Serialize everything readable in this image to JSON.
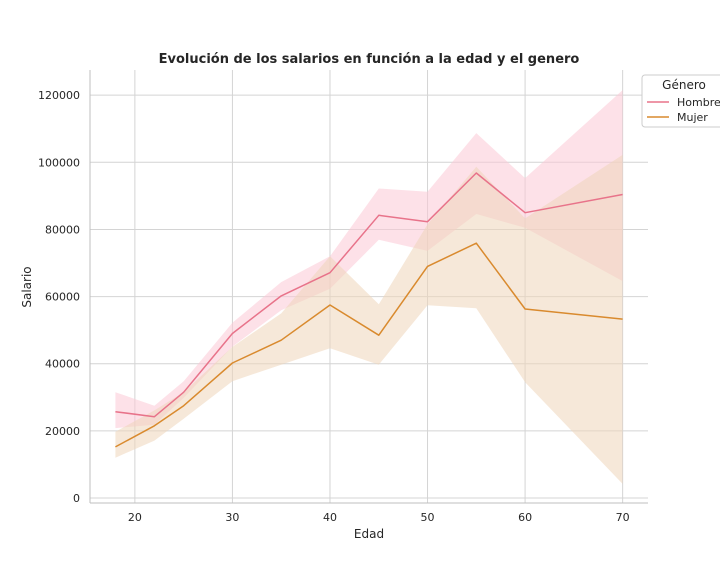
{
  "chart_data": {
    "type": "line",
    "title": "Evolución de los salarios en función a la edad y el genero",
    "xlabel": "Edad",
    "ylabel": "Salario",
    "xlim": [
      15.4,
      72.6
    ],
    "ylim": [
      -1500,
      127500
    ],
    "x_ticks": [
      20,
      30,
      40,
      50,
      60,
      70
    ],
    "y_ticks": [
      0,
      20000,
      40000,
      60000,
      80000,
      100000,
      120000
    ],
    "grid": true,
    "legend": {
      "title": "Género",
      "position": "top-right"
    },
    "series": [
      {
        "name": "Hombre",
        "color": "#e8738a",
        "band_color": "#fcc9d5",
        "x": [
          18,
          22,
          25,
          30,
          35,
          40,
          45,
          50,
          55,
          60,
          70
        ],
        "values": [
          25700,
          24200,
          31500,
          49000,
          60200,
          67100,
          84200,
          82300,
          96800,
          85000,
          90400
        ],
        "ci_lower": [
          20800,
          21800,
          29800,
          45100,
          55900,
          62300,
          76900,
          73600,
          84600,
          80500,
          64600
        ],
        "ci_upper": [
          31500,
          27500,
          34800,
          52200,
          64300,
          72000,
          92200,
          91200,
          108700,
          95300,
          121500
        ]
      },
      {
        "name": "Mujer",
        "color": "#d98a2e",
        "band_color": "#efd6b9",
        "x": [
          18,
          22,
          25,
          30,
          35,
          40,
          45,
          50,
          55,
          60,
          70
        ],
        "values": [
          15200,
          21500,
          27500,
          40200,
          47000,
          57500,
          48500,
          69000,
          75900,
          56300,
          53300
        ],
        "ci_lower": [
          12000,
          17100,
          23600,
          34800,
          39700,
          44600,
          39700,
          57400,
          56500,
          34500,
          4200
        ],
        "ci_upper": [
          19700,
          26100,
          31500,
          45000,
          55000,
          72000,
          57700,
          81500,
          98700,
          83300,
          102200
        ]
      }
    ]
  }
}
